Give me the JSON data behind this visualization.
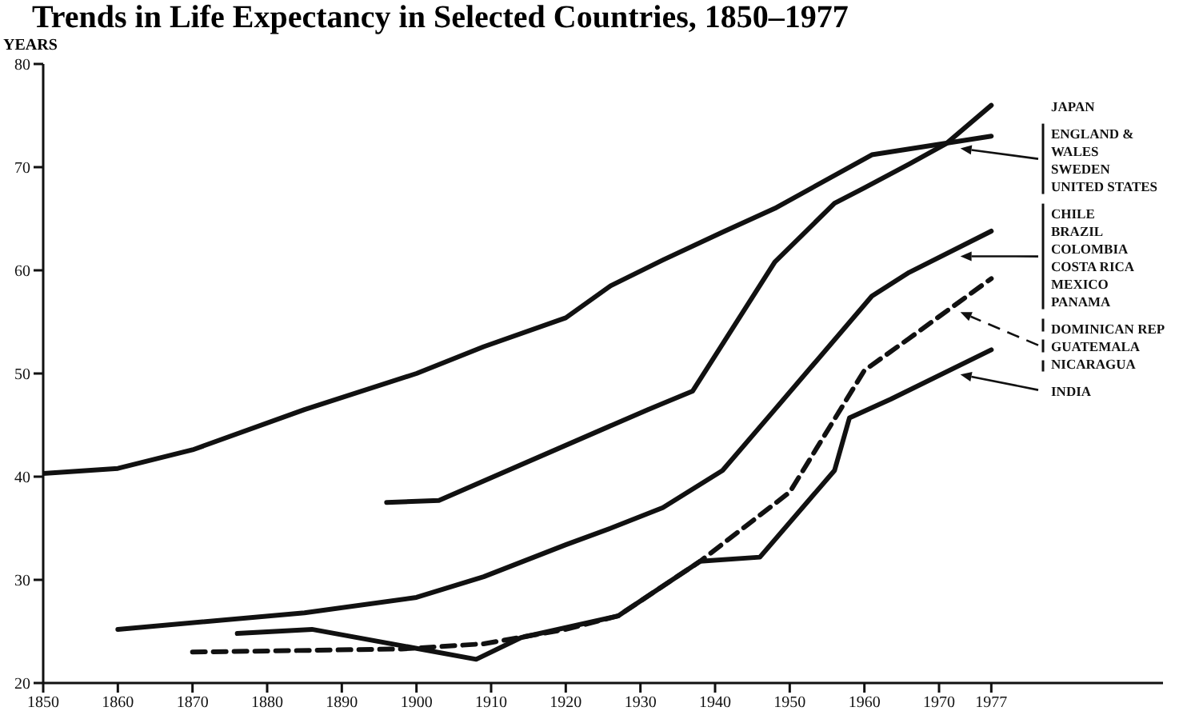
{
  "chart_data": {
    "type": "line",
    "title": "Trends in Life Expectancy in Selected Countries, 1850–1977",
    "ylabel": "YEARS",
    "xlim": [
      1850,
      2000
    ],
    "xticks": [
      1850,
      1860,
      1870,
      1880,
      1890,
      1900,
      1910,
      1920,
      1930,
      1940,
      1950,
      1960,
      1970,
      1977
    ],
    "ylim": [
      20,
      80
    ],
    "yticks": [
      20,
      30,
      40,
      50,
      60,
      70,
      80
    ],
    "legend": "right",
    "marker": "none",
    "series": [
      {
        "name": "JAPAN",
        "color": "#111111",
        "line_style": "solid",
        "x": [
          1896,
          1903,
          1931,
          1937,
          1948,
          1956,
          1960,
          1966,
          1971,
          1977
        ],
        "values": [
          37.5,
          37.7,
          46.5,
          48.3,
          60.8,
          66.5,
          68,
          70.3,
          72.3,
          76
        ]
      },
      {
        "name": "ENGLAND &\nWALES\nSWEDEN\nUNITED STATES",
        "color": "#111111",
        "line_style": "solid",
        "x": [
          1850,
          1860,
          1870,
          1885,
          1900,
          1909,
          1920,
          1926,
          1933,
          1941,
          1948,
          1961,
          1977
        ],
        "values": [
          40.3,
          40.8,
          42.6,
          46.5,
          50,
          52.6,
          55.4,
          58.5,
          61,
          63.7,
          66,
          71.2,
          73
        ]
      },
      {
        "name": "CHILE\nBRAZIL\nCOLOMBIA\nCOSTA RICA\nMEXICO\nPANAMA",
        "color": "#111111",
        "line_style": "solid",
        "x": [
          1860,
          1885,
          1900,
          1909,
          1920,
          1926,
          1933,
          1941,
          1948,
          1961,
          1966,
          1977
        ],
        "values": [
          25.2,
          26.8,
          28.3,
          30.3,
          33.4,
          35,
          37,
          40.6,
          46.5,
          57.5,
          59.8,
          63.8
        ]
      },
      {
        "name": "DOMINICAN REP\nGUATEMALA\nNICARAGUA",
        "color": "#111111",
        "line_style": "dashed",
        "x": [
          1870,
          1898,
          1909,
          1920,
          1927,
          1938,
          1950,
          1960,
          1966,
          1977
        ],
        "values": [
          23,
          23.3,
          23.8,
          25.2,
          26.5,
          31.8,
          38.5,
          50.3,
          53.4,
          59.2
        ]
      },
      {
        "name": "INDIA",
        "color": "#111111",
        "line_style": "solid",
        "x": [
          1876,
          1886,
          1908,
          1914,
          1927,
          1938,
          1946,
          1956,
          1958,
          1963.5,
          1977
        ],
        "values": [
          24.8,
          25.2,
          22.3,
          24.4,
          26.5,
          31.8,
          32.2,
          40.6,
          45.7,
          47.5,
          52.3
        ]
      }
    ]
  }
}
